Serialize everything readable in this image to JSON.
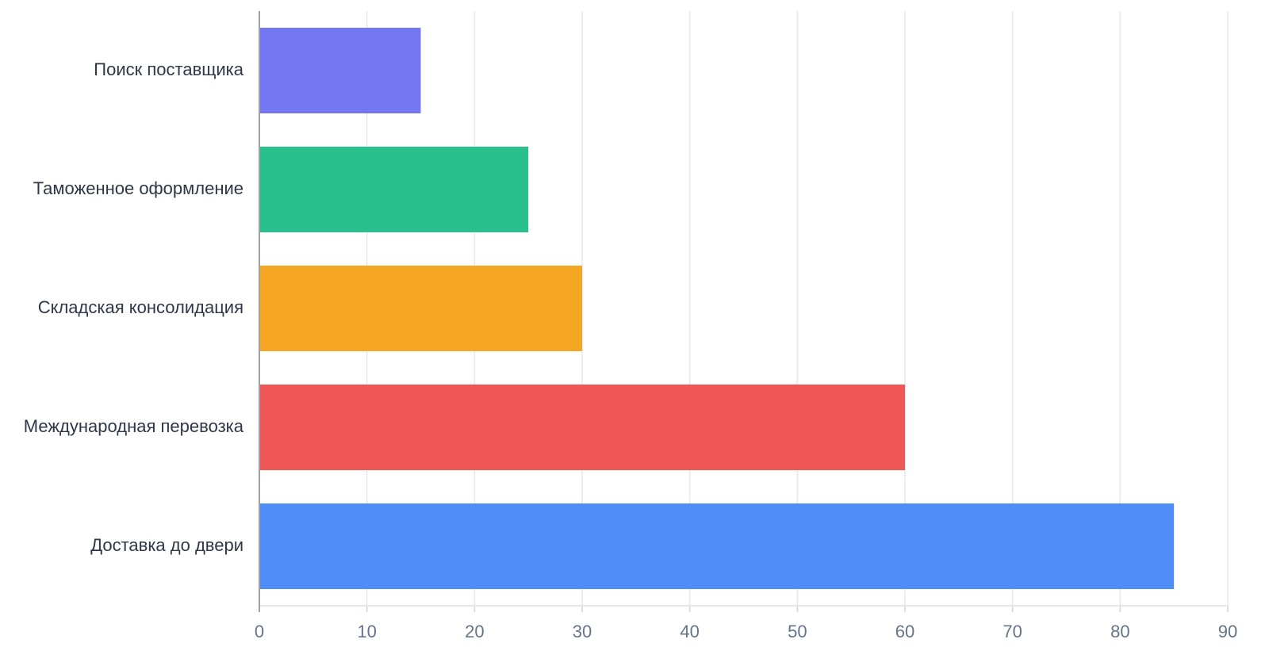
{
  "chart_data": {
    "type": "bar",
    "orientation": "horizontal",
    "categories": [
      "Поиск поставщика",
      "Таможенное оформление",
      "Складская консолидация",
      "Международная перевозка",
      "Доставка до двери"
    ],
    "values": [
      15,
      25,
      30,
      60,
      85
    ],
    "colors": [
      "#7477f2",
      "#28c08c",
      "#f5a623",
      "#f05656",
      "#4f8ef7"
    ],
    "xlim": [
      0,
      90
    ],
    "xticks": [
      0,
      10,
      20,
      30,
      40,
      50,
      60,
      70,
      80,
      90
    ],
    "grid": true
  }
}
